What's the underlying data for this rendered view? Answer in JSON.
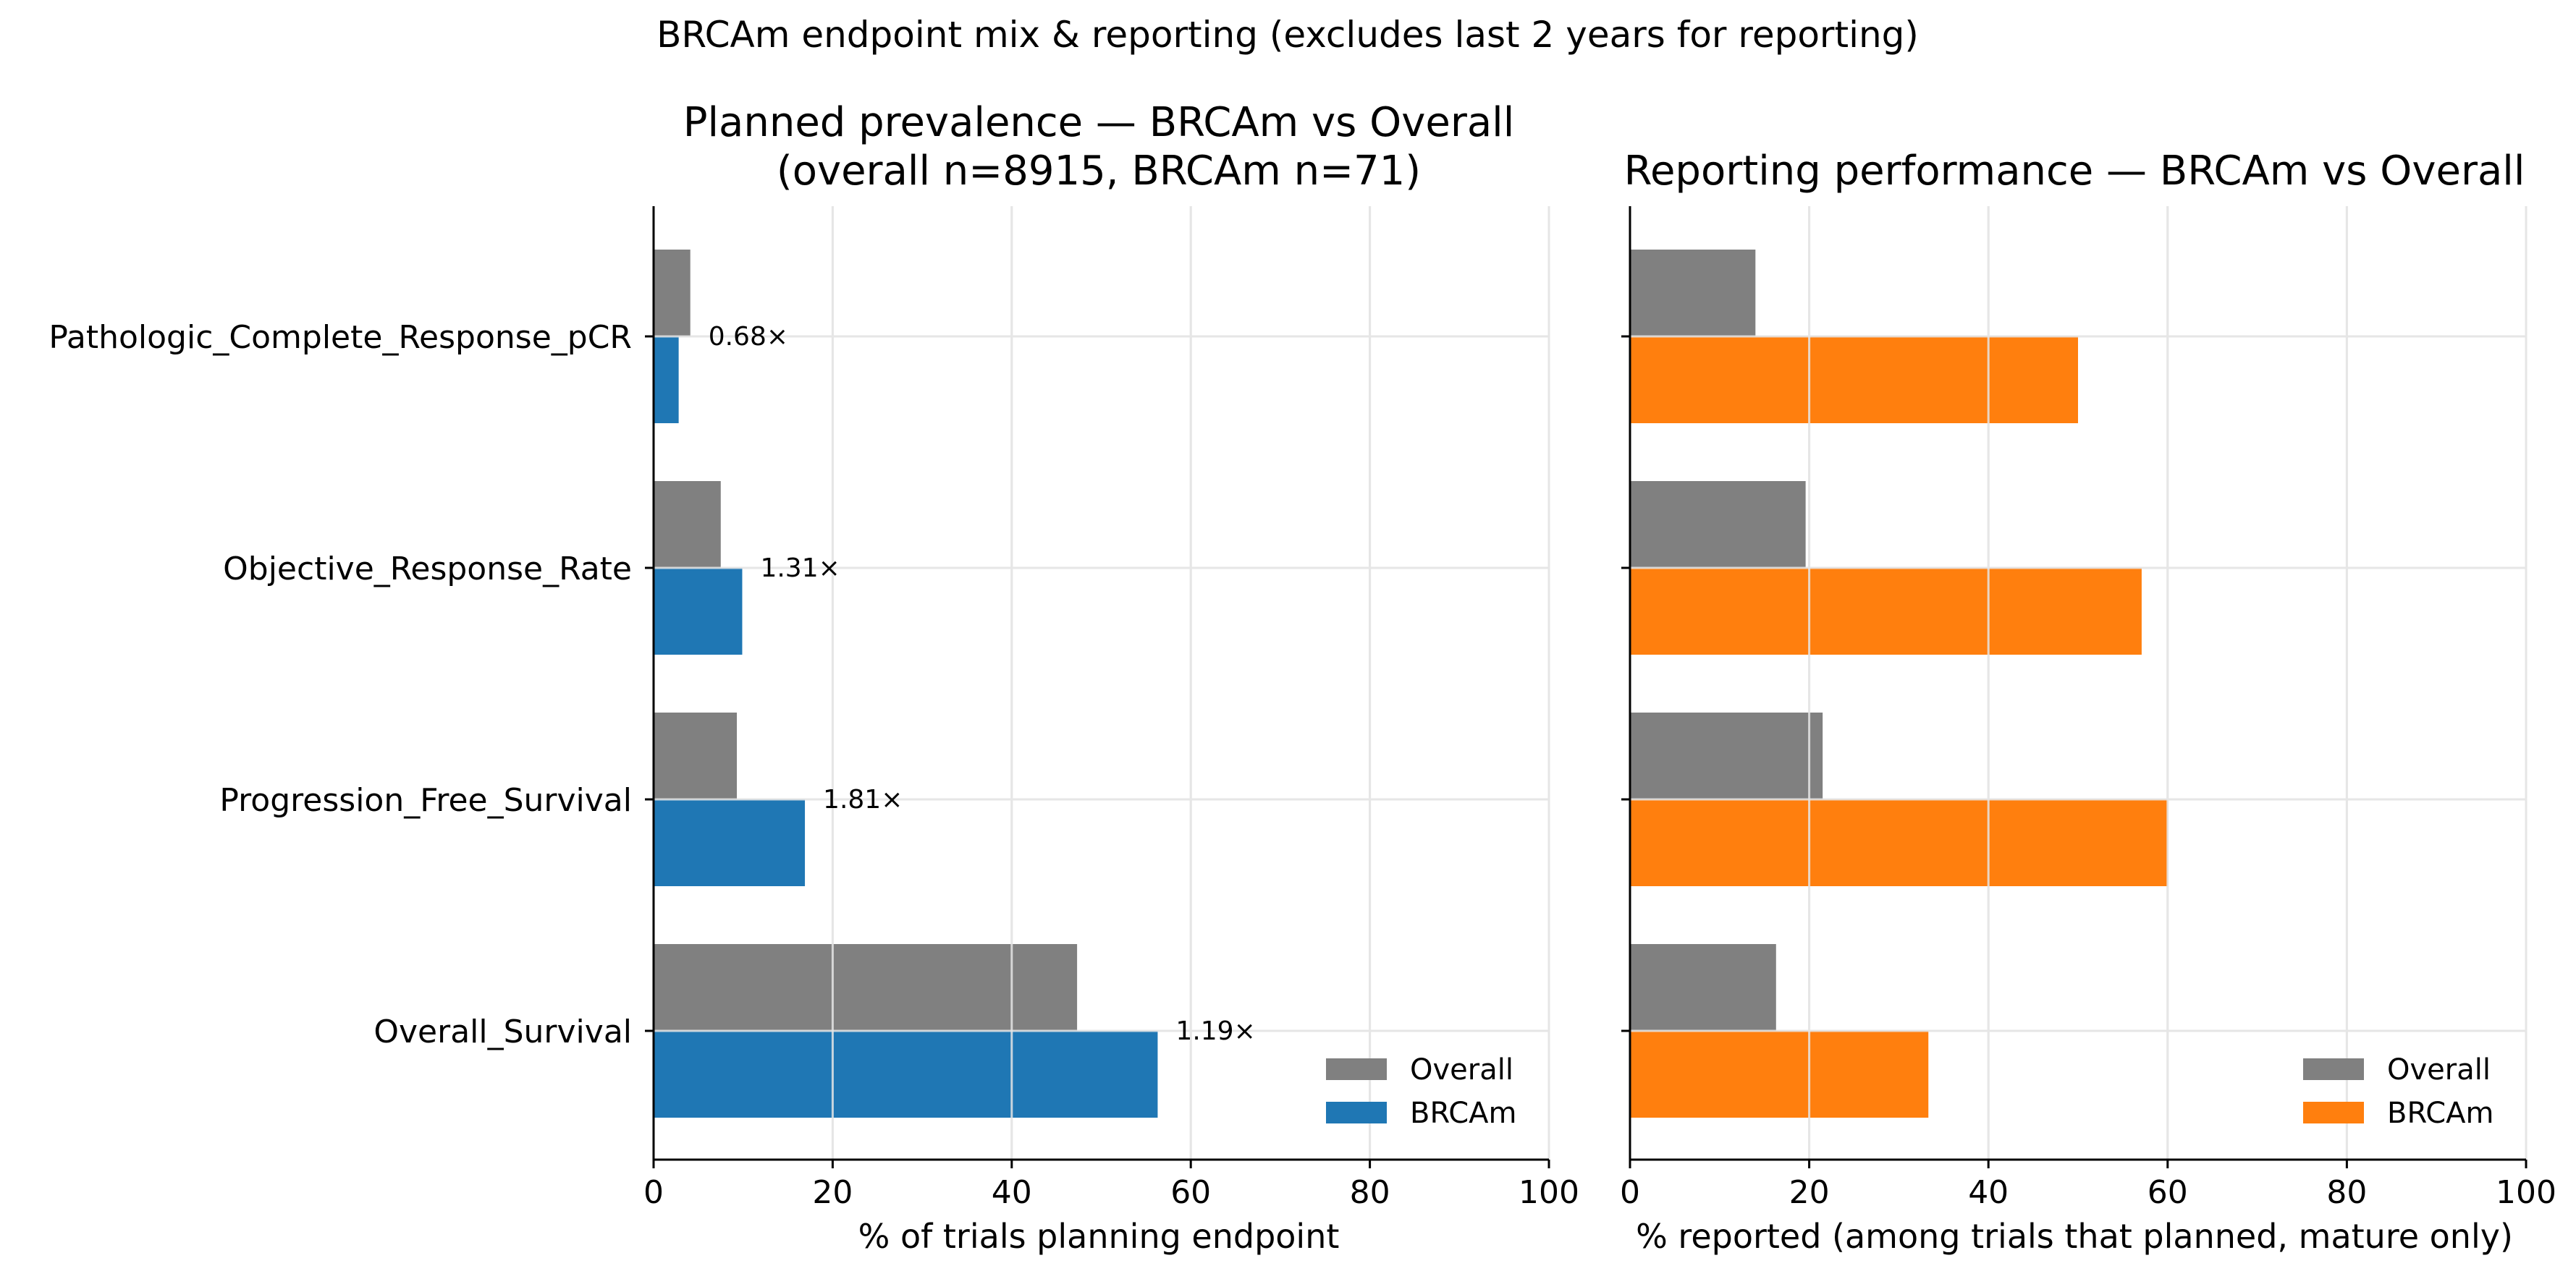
{
  "figure": {
    "suptitle": "BRCAm endpoint mix & reporting (excludes last 2 years for reporting)"
  },
  "colors": {
    "overall": "#808080",
    "brcam_prevalence": "#1f77b4",
    "brcam_reporting": "#ff7f0e",
    "grid": "#e6e6e6",
    "axis": "#000000"
  },
  "chart_data": [
    {
      "type": "bar",
      "orientation": "horizontal",
      "title_line1": "Planned prevalence — BRCAm vs Overall",
      "title_line2": "(overall n=8915, BRCAm n=71)",
      "xlabel": "% of trials planning endpoint",
      "ylabel": "",
      "xlim": [
        0,
        100
      ],
      "xticks": [
        "0",
        "20",
        "40",
        "60",
        "80",
        "100"
      ],
      "grid": true,
      "legend_position": "lower right",
      "categories": [
        "Pathologic_Complete_Response_pCR",
        "Objective_Response_Rate",
        "Progression_Free_Survival",
        "Overall_Survival"
      ],
      "series": [
        {
          "name": "Overall",
          "values": [
            4.1,
            7.5,
            9.3,
            47.3
          ]
        },
        {
          "name": "BRCAm",
          "values": [
            2.8,
            9.9,
            16.9,
            56.3
          ]
        }
      ],
      "annotations": [
        "0.68×",
        "1.31×",
        "1.81×",
        "1.19×"
      ]
    },
    {
      "type": "bar",
      "orientation": "horizontal",
      "title_line1": "Reporting performance — BRCAm vs Overall",
      "title_line2": "",
      "xlabel": "% reported (among trials that planned, mature only)",
      "ylabel": "",
      "xlim": [
        0,
        100
      ],
      "xticks": [
        "0",
        "20",
        "40",
        "60",
        "80",
        "100"
      ],
      "grid": true,
      "legend_position": "lower right",
      "categories": [
        "Pathologic_Complete_Response_pCR",
        "Objective_Response_Rate",
        "Progression_Free_Survival",
        "Overall_Survival"
      ],
      "series": [
        {
          "name": "Overall",
          "values": [
            14.0,
            19.6,
            21.5,
            16.3
          ]
        },
        {
          "name": "BRCAm",
          "values": [
            50.0,
            57.1,
            60.0,
            33.3
          ]
        }
      ]
    }
  ]
}
